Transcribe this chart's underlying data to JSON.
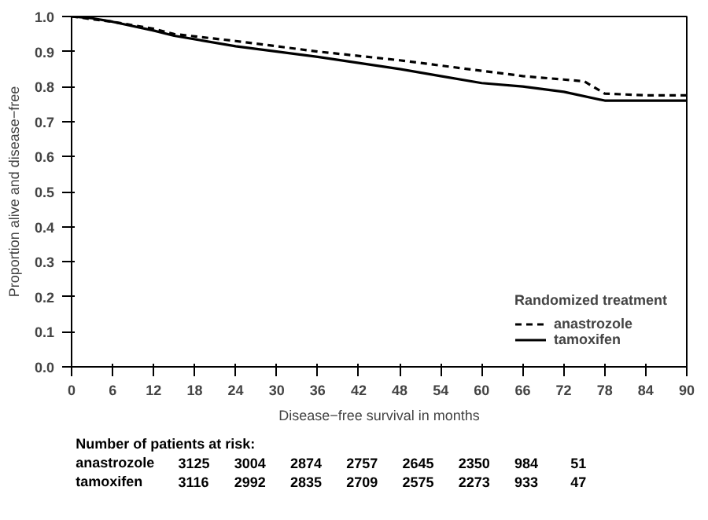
{
  "chart_data": {
    "type": "line",
    "xlabel": "Disease−free survival in months",
    "ylabel": "Proportion alive and disease−free",
    "legend_title": "Randomized treatment",
    "legend": "bottom right",
    "grid": false,
    "xlim": [
      0,
      90
    ],
    "xticks": [
      0,
      6,
      12,
      18,
      24,
      30,
      36,
      42,
      48,
      54,
      60,
      66,
      72,
      78,
      84,
      90
    ],
    "ylim": [
      0,
      1
    ],
    "yticks": [
      {
        "value": 0,
        "label": "0.0"
      },
      0.1,
      0.2,
      0.3,
      0.4,
      0.5,
      0.6,
      0.7,
      0.8,
      0.9,
      {
        "value": 1,
        "label": "1.0"
      }
    ],
    "series": [
      {
        "name": "anastrozole",
        "color": "#000000",
        "line_style": "dashed",
        "x": [
          0,
          6,
          12,
          15,
          24,
          36,
          48,
          60,
          66,
          72,
          75,
          78,
          84,
          90
        ],
        "values": [
          1,
          0.985,
          0.965,
          0.95,
          0.93,
          0.9,
          0.875,
          0.845,
          0.83,
          0.82,
          0.815,
          0.78,
          0.775,
          0.775
        ]
      },
      {
        "name": "tamoxifen",
        "color": "#000000",
        "line_style": "solid",
        "x": [
          0,
          3,
          6,
          12,
          15,
          24,
          36,
          48,
          54,
          60,
          66,
          72,
          78,
          90
        ],
        "values": [
          1,
          0.995,
          0.985,
          0.96,
          0.945,
          0.915,
          0.885,
          0.85,
          0.83,
          0.81,
          0.8,
          0.785,
          0.76,
          0.76
        ]
      }
    ],
    "annotations": [
      "Number of patients at risk:",
      "anastrozole 3125 3004 2874 2757 2645 2350 984 51",
      "tamoxifen 3116 2992 2835 2709 2575 2273 933 47"
    ]
  }
}
